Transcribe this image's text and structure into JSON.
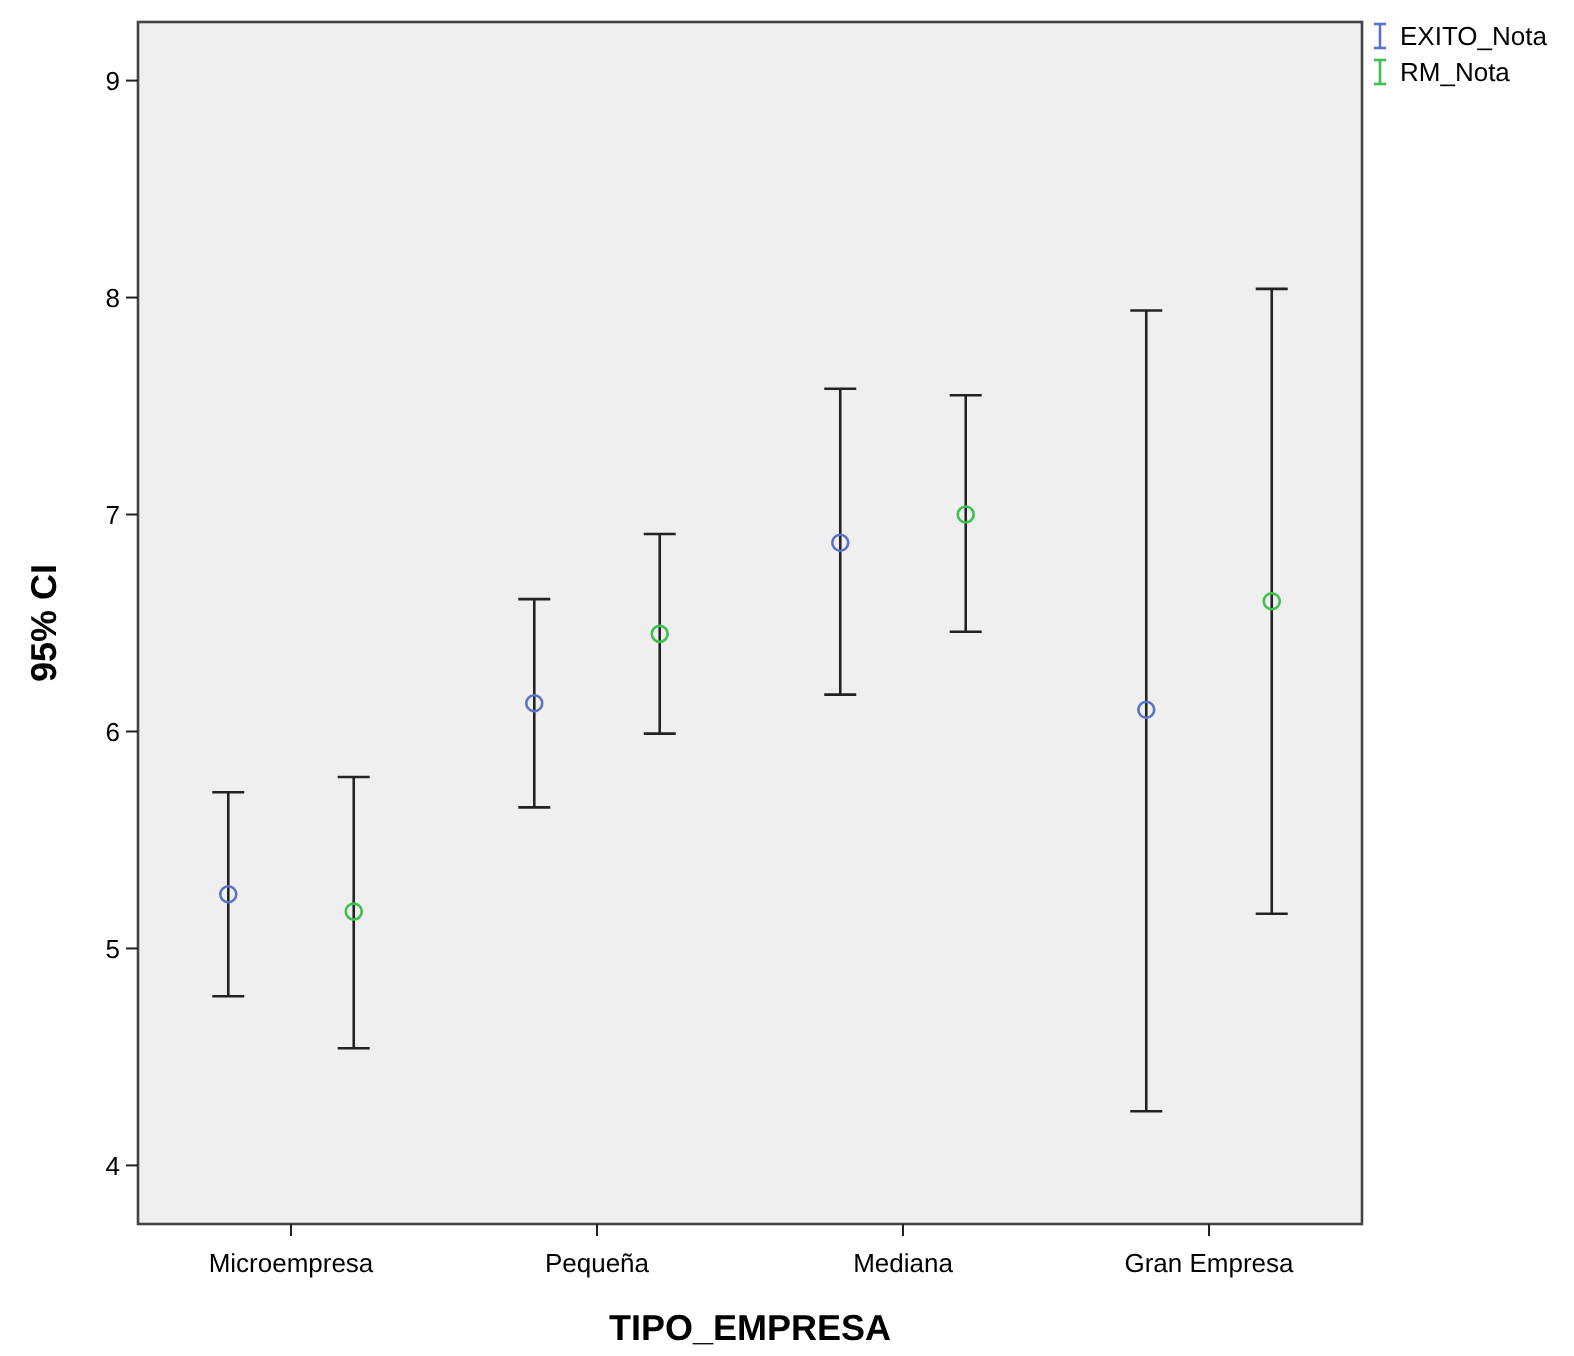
{
  "chart_data": {
    "type": "scatter",
    "xlabel": "TIPO_EMPRESA",
    "ylabel": "95% CI",
    "categories": [
      "Microempresa",
      "Pequeña",
      "Mediana",
      "Gran Empresa"
    ],
    "series": [
      {
        "name": "EXITO_Nota",
        "color": "#5b73c4",
        "values": [
          5.25,
          6.13,
          6.87,
          6.1
        ],
        "errors": [
          [
            4.78,
            5.72
          ],
          [
            5.65,
            6.61
          ],
          [
            6.17,
            7.58
          ],
          [
            4.25,
            7.94
          ]
        ]
      },
      {
        "name": "RM_Nota",
        "color": "#3fbf4f",
        "values": [
          5.17,
          6.45,
          7.0,
          6.6
        ],
        "errors": [
          [
            4.54,
            5.79
          ],
          [
            5.99,
            6.91
          ],
          [
            6.46,
            7.55
          ],
          [
            5.16,
            8.04
          ]
        ]
      }
    ],
    "ylim": [
      3.73,
      9.27
    ],
    "yticks": [
      4,
      5,
      6,
      7,
      8,
      9
    ],
    "grid": false,
    "legend": "top right",
    "marker": "circle"
  }
}
